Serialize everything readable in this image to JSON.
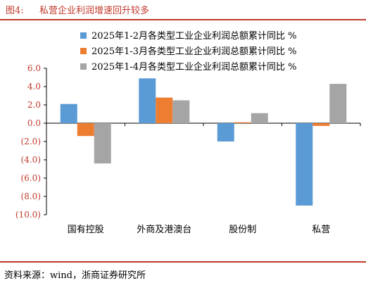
{
  "header": {
    "figure_label": "图4:",
    "title": "私营企业利润增速回升较多"
  },
  "source": "资料来源：wind，浙商证券研究所",
  "colors": {
    "accent": "#c0392b",
    "series": [
      "#5b9bd5",
      "#ed7d31",
      "#a5a5a5"
    ]
  },
  "chart_data": {
    "type": "bar",
    "categories": [
      "国有控股",
      "外商及港澳台",
      "股份制",
      "私营"
    ],
    "series": [
      {
        "name": "2025年1-2月各类型工业企业利润总额累计同比 %",
        "values": [
          2.1,
          4.9,
          -2.0,
          -9.0
        ]
      },
      {
        "name": "2025年1-3月各类型工业企业利润总额累计同比 %",
        "values": [
          -1.4,
          2.8,
          0.1,
          -0.3
        ]
      },
      {
        "name": "2025年1-4月各类型工业企业利润总额累计同比 %",
        "values": [
          -4.4,
          2.5,
          1.1,
          4.3
        ]
      }
    ],
    "ylim": [
      -10,
      6
    ],
    "yticks": [
      6,
      4,
      2,
      0,
      -2,
      -4,
      -6,
      -8,
      -10
    ],
    "ytick_labels": [
      "6.0",
      "4.0",
      "2.0",
      "0.0",
      "(2.0)",
      "(4.0)",
      "(6.0)",
      "(8.0)",
      "(10.0)"
    ],
    "legend_position": "top-right",
    "grid": false
  }
}
